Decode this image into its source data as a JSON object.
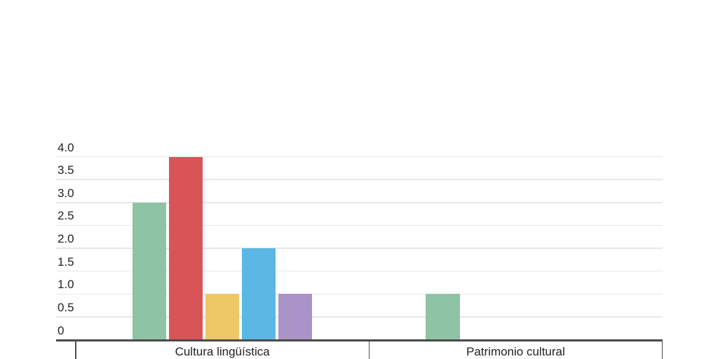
{
  "chart_data": {
    "type": "bar",
    "title": "",
    "xlabel": "",
    "ylabel": "",
    "categories": [
      "Cultura lingüística",
      "Patrimonio cultural"
    ],
    "series": [
      {
        "name": "green",
        "color": "#8fc3a6",
        "values": [
          3,
          1
        ]
      },
      {
        "name": "red",
        "color": "#d95457",
        "values": [
          4,
          0
        ]
      },
      {
        "name": "yellow",
        "color": "#eec867",
        "values": [
          1,
          0
        ]
      },
      {
        "name": "blue",
        "color": "#5db7e4",
        "values": [
          2,
          0
        ]
      },
      {
        "name": "purple",
        "color": "#aa93c8",
        "values": [
          1,
          0
        ]
      }
    ],
    "y_axis": {
      "ylim": [
        0,
        4.0
      ],
      "ticks": [
        {
          "label": "4.0",
          "value": 4.0
        },
        {
          "label": "3.5",
          "value": 3.5
        },
        {
          "label": "3.0",
          "value": 3.0
        },
        {
          "label": "2.5",
          "value": 2.5
        },
        {
          "label": "2.0",
          "value": 2.0
        },
        {
          "label": "1.5",
          "value": 1.5
        },
        {
          "label": "1.0",
          "value": 1.0
        },
        {
          "label": "0.5",
          "value": 0.5
        },
        {
          "label": "0",
          "value": 0
        }
      ]
    },
    "grid": "horizontal",
    "legend": "none",
    "style": {
      "gridline_color": "#e7e7e7",
      "baseline_color": "#4a4a4a",
      "separator_color": "#4f4f4f",
      "text_color": "#222222"
    }
  }
}
